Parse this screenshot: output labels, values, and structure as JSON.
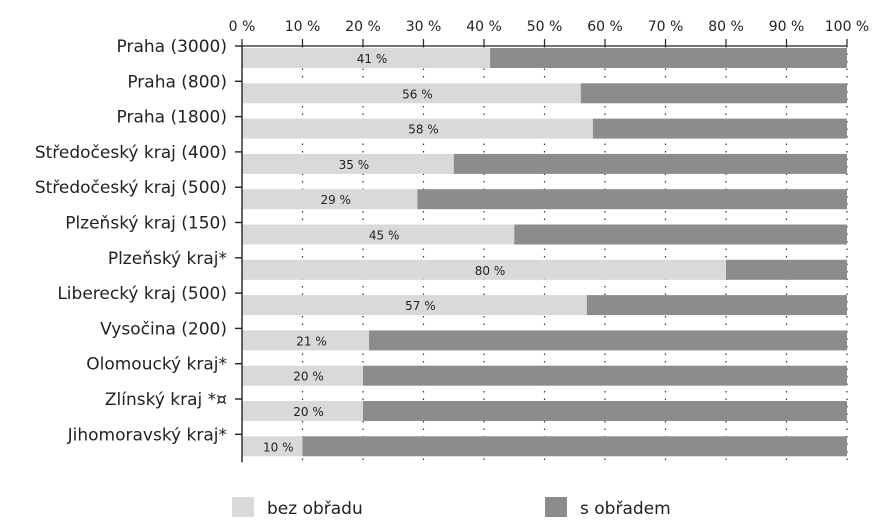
{
  "chart_data": {
    "type": "bar",
    "stacked": true,
    "orientation": "horizontal",
    "categories": [
      "Praha (3000)",
      "Praha (800)",
      "Praha (1800)",
      "Středočeský kraj (400)",
      "Středočeský kraj (500)",
      "Plzeňský kraj (150)",
      "Plzeňský kraj*",
      "Liberecký kraj (500)",
      "Vysočina (200)",
      "Olomoucký kraj*",
      "Zlínský kraj *¤",
      "Jihomoravský kraj*"
    ],
    "series": [
      {
        "name": "bez obřadu",
        "values": [
          41,
          56,
          58,
          35,
          29,
          45,
          80,
          57,
          21,
          20,
          20,
          10
        ],
        "color": "#d9d9d9"
      },
      {
        "name": "s obřadem",
        "values": [
          59,
          44,
          42,
          65,
          71,
          55,
          20,
          43,
          79,
          80,
          80,
          90
        ],
        "color": "#8c8c8c"
      }
    ],
    "data_labels": [
      "41 %",
      "56 %",
      "58 %",
      "35 %",
      "29 %",
      "45 %",
      "80 %",
      "57 %",
      "21 %",
      "20 %",
      "20 %",
      "10 %"
    ],
    "x_ticks": [
      "0 %",
      "10 %",
      "20 %",
      "30 %",
      "40 %",
      "50 %",
      "60 %",
      "70 %",
      "80 %",
      "90 %",
      "100 %"
    ],
    "xlim": [
      0,
      100
    ],
    "x_axis_position": "top",
    "grid": "vertical dotted",
    "legend_position": "bottom"
  }
}
